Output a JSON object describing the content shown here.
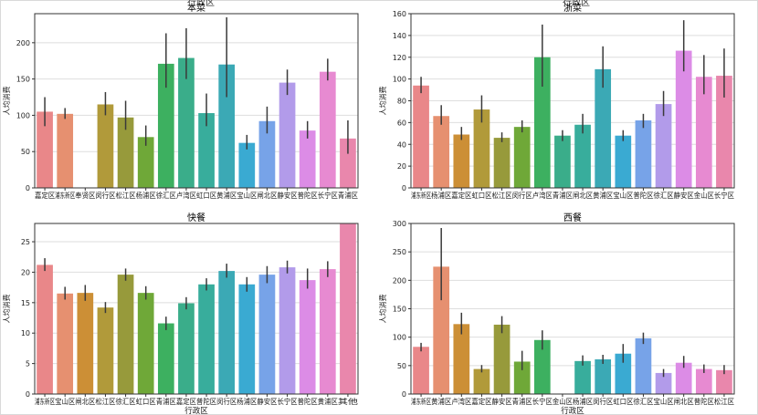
{
  "top_cut_labels": [
    "行政区",
    "行政区"
  ],
  "chart_data": [
    {
      "type": "bar",
      "title": "本菜",
      "xlabel": "",
      "ylabel": "人均消费",
      "ylim": [
        0,
        240
      ],
      "yticks": [
        0,
        50,
        100,
        150,
        200
      ],
      "grid": "horizontal",
      "categories": [
        "嘉定区",
        "浦东新区",
        "奉贤区",
        "闵行区",
        "松江区",
        "杨浦区",
        "徐汇区",
        "卢湾区",
        "虹口区",
        "黄浦区",
        "宝山区",
        "闸北区",
        "静安区",
        "普陀区",
        "长宁区",
        "青浦区"
      ],
      "tick_labels": [
        "嘉定区",
        "浦东新区",
        "奉贤区",
        "闵行区",
        "松江区",
        "杨浦区",
        "徐汇区",
        "卢湾区",
        "虹口区",
        "黄浦区",
        "宝山区",
        "闸北区",
        "静安区",
        "普陀区",
        "长宁区",
        "青浦区"
      ],
      "values": [
        105,
        102,
        0,
        115,
        97,
        70,
        171,
        179,
        103,
        170,
        62,
        92,
        145,
        79,
        160,
        68
      ],
      "err_low": [
        85,
        95,
        0,
        100,
        80,
        58,
        138,
        150,
        85,
        125,
        53,
        75,
        128,
        68,
        148,
        47
      ],
      "err_high": [
        125,
        110,
        0,
        132,
        120,
        86,
        213,
        220,
        130,
        235,
        73,
        112,
        163,
        92,
        178,
        93
      ],
      "colors": [
        "#e98789",
        "#e69070",
        "#cc8f36",
        "#b19a3a",
        "#979a3b",
        "#6fa838",
        "#3db060",
        "#3aad8a",
        "#38ad9c",
        "#3ba9b5",
        "#3aaad2",
        "#77a3e8",
        "#b29bea",
        "#dc8ce6",
        "#e78ad1",
        "#e987ac"
      ]
    },
    {
      "type": "bar",
      "title": "浙菜",
      "xlabel": "",
      "ylabel": "人均消费",
      "ylim": [
        0,
        160
      ],
      "yticks": [
        0,
        20,
        40,
        60,
        80,
        100,
        120,
        140,
        160
      ],
      "grid": "horizontal",
      "categories": [
        "浦东新区",
        "杨浦区",
        "嘉定区",
        "虹口区",
        "松江区",
        "闵行区",
        "卢湾区",
        "青浦区",
        "闸北区",
        "黄浦区",
        "宝山区",
        "普陀区",
        "徐汇区",
        "静安区",
        "金山区",
        "长宁区"
      ],
      "tick_labels": [
        "浦东新区",
        "杨浦区",
        "嘉定区",
        "虹口区",
        "松江区",
        "闵行区",
        "卢湾区",
        "青浦区",
        "闸北区",
        "黄浦区",
        "宝山区",
        "普陀区",
        "徐汇区",
        "静安区",
        "金山区",
        "长宁区"
      ],
      "values": [
        94,
        66,
        49,
        72,
        46,
        56,
        120,
        48,
        58,
        109,
        48,
        62,
        77,
        126,
        102,
        103
      ],
      "err_low": [
        87,
        58,
        44,
        60,
        42,
        51,
        93,
        43,
        50,
        92,
        43,
        55,
        66,
        107,
        86,
        83
      ],
      "err_high": [
        102,
        76,
        56,
        85,
        51,
        62,
        150,
        53,
        68,
        130,
        53,
        68,
        89,
        154,
        122,
        128
      ],
      "colors": [
        "#e98789",
        "#e69070",
        "#cc8f36",
        "#b19a3a",
        "#979a3b",
        "#6fa838",
        "#3db060",
        "#3aad8a",
        "#38ad9c",
        "#3ba9b5",
        "#3aaad2",
        "#77a3e8",
        "#b29bea",
        "#dc8ce6",
        "#e78ad1",
        "#e987ac"
      ]
    },
    {
      "type": "bar",
      "title": "快餐",
      "xlabel": "行政区",
      "ylabel": "人均消费",
      "ylim": [
        0,
        28
      ],
      "yticks": [
        0,
        5,
        10,
        15,
        20,
        25
      ],
      "grid": "horizontal",
      "categories": [
        "浦东新区",
        "宝山区",
        "闸北区",
        "松江区",
        "徐汇区",
        "虹口区",
        "青浦区",
        "嘉定区",
        "普陀区",
        "闵行区",
        "杨浦区",
        "静安区",
        "长宁区",
        "普陀区",
        "黄浦区",
        "其他"
      ],
      "tick_labels": [
        "浦东新区",
        "宝山区",
        "闸北区",
        "松江区",
        "徐汇区",
        "虹口区",
        "青浦区",
        "嘉定区",
        "普陀区",
        "闵行区",
        "杨浦区",
        "静安区",
        "长宁区",
        "普陀区",
        "黄浦区",
        "其他"
      ],
      "values": [
        21.2,
        16.5,
        16.6,
        14.2,
        19.6,
        16.6,
        11.6,
        14.9,
        18.0,
        20.2,
        18.0,
        19.6,
        20.8,
        18.7,
        20.5,
        28.0
      ],
      "err_low": [
        20.2,
        15.5,
        15.3,
        13.3,
        18.6,
        15.5,
        10.5,
        13.9,
        17.0,
        19.1,
        16.8,
        18.2,
        19.8,
        17.3,
        19.2,
        28.0
      ],
      "err_high": [
        22.3,
        17.6,
        17.9,
        15.1,
        20.6,
        17.7,
        12.7,
        15.9,
        19.0,
        21.4,
        19.2,
        21.0,
        21.9,
        20.6,
        21.8,
        28.0
      ],
      "colors": [
        "#e98789",
        "#e69070",
        "#cc8f36",
        "#b19a3a",
        "#979a3b",
        "#6fa838",
        "#3db060",
        "#3aad8a",
        "#38ad9c",
        "#3ba9b5",
        "#3aaad2",
        "#77a3e8",
        "#b29bea",
        "#dc8ce6",
        "#e78ad1",
        "#e987ac"
      ]
    },
    {
      "type": "bar",
      "title": "西餐",
      "xlabel": "行政区",
      "ylabel": "人均消费",
      "ylim": [
        0,
        300
      ],
      "yticks": [
        0,
        50,
        100,
        150,
        200,
        250,
        300
      ],
      "grid": "horizontal",
      "categories": [
        "浦东新区",
        "黄浦区",
        "卢湾区",
        "嘉定区",
        "静安区",
        "青浦区",
        "长宁区",
        "金山区",
        "杨浦区",
        "闵行区",
        "虹口区",
        "徐汇区",
        "宝山区",
        "闸北区",
        "普陀区",
        "松江区"
      ],
      "tick_labels": [
        "浦东新区",
        "黄浦区",
        "卢湾区",
        "嘉定区",
        "静安区",
        "青浦区",
        "长宁区",
        "金山区",
        "杨浦区",
        "闵行区",
        "虹口区",
        "徐汇区",
        "宝山区",
        "闸北区",
        "普陀区",
        "松江区"
      ],
      "values": [
        83,
        224,
        123,
        44,
        122,
        57,
        95,
        0,
        58,
        61,
        71,
        98,
        37,
        55,
        44,
        42
      ],
      "err_low": [
        75,
        165,
        105,
        38,
        107,
        42,
        78,
        0,
        50,
        53,
        55,
        88,
        30,
        46,
        37,
        35
      ],
      "err_high": [
        90,
        292,
        143,
        51,
        137,
        76,
        112,
        0,
        68,
        69,
        88,
        108,
        44,
        67,
        52,
        51
      ],
      "colors": [
        "#e98789",
        "#e69070",
        "#cc8f36",
        "#b19a3a",
        "#979a3b",
        "#6fa838",
        "#3db060",
        "#3aad8a",
        "#38ad9c",
        "#3ba9b5",
        "#3aaad2",
        "#77a3e8",
        "#b29bea",
        "#dc8ce6",
        "#e78ad1",
        "#e987ac"
      ]
    }
  ]
}
